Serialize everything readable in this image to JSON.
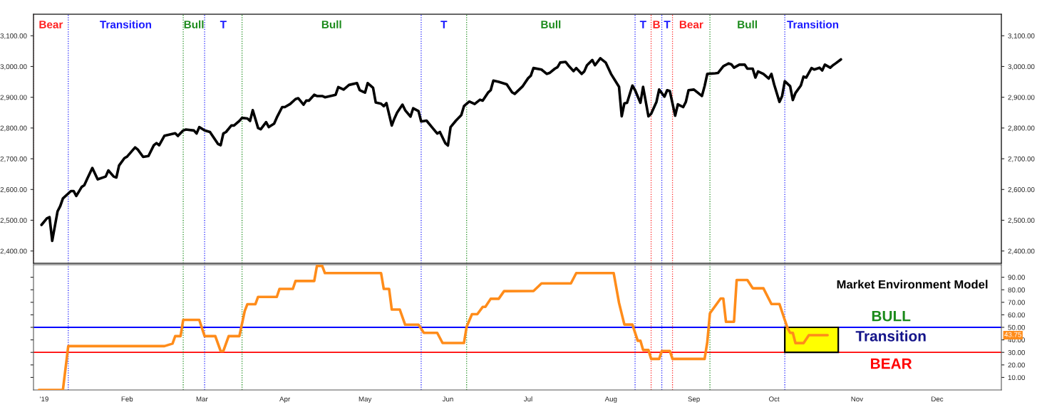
{
  "chart_data": [
    {
      "type": "line",
      "tick_labels": "y",
      "xlim": [
        "2018-12-28",
        "2019-12-25"
      ],
      "ylim": [
        2360,
        3170
      ],
      "yticks": [
        {
          "value": 2400,
          "label": "2,400.00"
        },
        {
          "value": 2500,
          "label": "2,500.00"
        },
        {
          "value": 2600,
          "label": "2,600.00"
        },
        {
          "value": 2700,
          "label": "2,700.00"
        },
        {
          "value": 2800,
          "label": "2,800.00"
        },
        {
          "value": 2900,
          "label": "2,900.00"
        },
        {
          "value": 3000,
          "label": "3,000.00"
        },
        {
          "value": 3100,
          "label": "3,100.00"
        }
      ],
      "y2lim": [
        2360,
        3170
      ],
      "y2ticks": [
        {
          "value": 2400,
          "label": "2,400.00"
        },
        {
          "value": 2500,
          "label": "2,500.00"
        },
        {
          "value": 2600,
          "label": "2,600.00"
        },
        {
          "value": 2700,
          "label": "2,700.00"
        },
        {
          "value": 2800,
          "label": "2,800.00"
        },
        {
          "value": 2900,
          "label": "2,900.00"
        },
        {
          "value": 3000,
          "label": "3,000.00"
        },
        {
          "value": 3100,
          "label": "3,100.00"
        }
      ],
      "ref_lines": [
        {
          "axis": "x",
          "value": "2018-12-28",
          "label": "Bear",
          "color": "#ff2020",
          "line_style": "dotted"
        },
        {
          "axis": "x",
          "value": "2019-01-10",
          "label": "Transition",
          "color": "#1a1aff",
          "line_style": "dotted"
        },
        {
          "axis": "x",
          "value": "2019-02-22",
          "label": "Bull",
          "color": "#1a8a1a",
          "line_style": "dotted"
        },
        {
          "axis": "x",
          "value": "2019-03-02",
          "label": "T",
          "color": "#1a1aff",
          "line_style": "dotted"
        },
        {
          "axis": "x",
          "value": "2019-03-16",
          "label": "Bull",
          "color": "#1a8a1a",
          "line_style": "dotted"
        },
        {
          "axis": "x",
          "value": "2019-05-22",
          "label": "T",
          "color": "#1a1aff",
          "line_style": "dotted"
        },
        {
          "axis": "x",
          "value": "2019-06-08",
          "label": "Bull",
          "color": "#1a8a1a",
          "line_style": "dotted"
        },
        {
          "axis": "x",
          "value": "2019-08-10",
          "label": "T",
          "color": "#1a1aff",
          "line_style": "dotted"
        },
        {
          "axis": "x",
          "value": "2019-08-16",
          "label": "B",
          "color": "#ff2020",
          "line_style": "dotted"
        },
        {
          "axis": "x",
          "value": "2019-08-20",
          "label": "T",
          "color": "#1a1aff",
          "line_style": "dotted"
        },
        {
          "axis": "x",
          "value": "2019-08-24",
          "label": "Bear",
          "color": "#ff2020",
          "line_style": "dotted"
        },
        {
          "axis": "x",
          "value": "2019-09-07",
          "label": "Bull",
          "color": "#1a8a1a",
          "line_style": "dotted"
        },
        {
          "axis": "x",
          "value": "2019-10-05",
          "label": "Transition",
          "color": "#1a1aff",
          "line_style": "dotted"
        }
      ],
      "series": [
        {
          "color": "#000000",
          "x": [
            "2018-12-31",
            "2019-01-02",
            "2019-01-03",
            "2019-01-04",
            "2019-01-06",
            "2019-01-07",
            "2019-01-08",
            "2019-01-11",
            "2019-01-12",
            "2019-01-13",
            "2019-01-15",
            "2019-01-16",
            "2019-01-17",
            "2019-01-19",
            "2019-01-21",
            "2019-01-24",
            "2019-01-25",
            "2019-01-27",
            "2019-01-28",
            "2019-01-29",
            "2019-01-31",
            "2019-02-01",
            "2019-02-04",
            "2019-02-05",
            "2019-02-07",
            "2019-02-09",
            "2019-02-11",
            "2019-02-12",
            "2019-02-13",
            "2019-02-15",
            "2019-02-19",
            "2019-02-20",
            "2019-02-22",
            "2019-02-23",
            "2019-02-26",
            "2019-02-27",
            "2019-02-28",
            "2019-03-02",
            "2019-03-04",
            "2019-03-07",
            "2019-03-08",
            "2019-03-09",
            "2019-03-10",
            "2019-03-12",
            "2019-03-13",
            "2019-03-15",
            "2019-03-16",
            "2019-03-18",
            "2019-03-19",
            "2019-03-20",
            "2019-03-22",
            "2019-03-23",
            "2019-03-25",
            "2019-03-26",
            "2019-03-28",
            "2019-03-29",
            "2019-03-31",
            "2019-04-01",
            "2019-04-03",
            "2019-04-05",
            "2019-04-06",
            "2019-04-08",
            "2019-04-09",
            "2019-04-10",
            "2019-04-12",
            "2019-04-13",
            "2019-04-15",
            "2019-04-16",
            "2019-04-18",
            "2019-04-20",
            "2019-04-21",
            "2019-04-23",
            "2019-04-25",
            "2019-04-28",
            "2019-04-29",
            "2019-05-01",
            "2019-05-02",
            "2019-05-04",
            "2019-05-05",
            "2019-05-07",
            "2019-05-08",
            "2019-05-09",
            "2019-05-11",
            "2019-05-12",
            "2019-05-13",
            "2019-05-15",
            "2019-05-16",
            "2019-05-18",
            "2019-05-19",
            "2019-05-21",
            "2019-05-22",
            "2019-05-24",
            "2019-05-26",
            "2019-05-28",
            "2019-05-29",
            "2019-05-31",
            "2019-06-01",
            "2019-06-02",
            "2019-06-04",
            "2019-06-06",
            "2019-06-07",
            "2019-06-09",
            "2019-06-11",
            "2019-06-13",
            "2019-06-14",
            "2019-06-16",
            "2019-06-17",
            "2019-06-18",
            "2019-06-20",
            "2019-06-23",
            "2019-06-25",
            "2019-06-26",
            "2019-06-29",
            "2019-07-01",
            "2019-07-02",
            "2019-07-03",
            "2019-07-06",
            "2019-07-08",
            "2019-07-09",
            "2019-07-11",
            "2019-07-12",
            "2019-07-13",
            "2019-07-15",
            "2019-07-16",
            "2019-07-18",
            "2019-07-19",
            "2019-07-21",
            "2019-07-22",
            "2019-07-23",
            "2019-07-25",
            "2019-07-26",
            "2019-07-28",
            "2019-07-30",
            "2019-08-01",
            "2019-08-04",
            "2019-08-05",
            "2019-08-06",
            "2019-08-07",
            "2019-08-09",
            "2019-08-10",
            "2019-08-12",
            "2019-08-13",
            "2019-08-15",
            "2019-08-16",
            "2019-08-18",
            "2019-08-19",
            "2019-08-21",
            "2019-08-22",
            "2019-08-23",
            "2019-08-25",
            "2019-08-26",
            "2019-08-28",
            "2019-08-29",
            "2019-08-30",
            "2019-09-01",
            "2019-09-04",
            "2019-09-05",
            "2019-09-06",
            "2019-09-09",
            "2019-09-10",
            "2019-09-12",
            "2019-09-14",
            "2019-09-15",
            "2019-09-16",
            "2019-09-18",
            "2019-09-20",
            "2019-09-21",
            "2019-09-23",
            "2019-09-24",
            "2019-09-25",
            "2019-09-27",
            "2019-09-29",
            "2019-09-30",
            "2019-10-01",
            "2019-10-03",
            "2019-10-04",
            "2019-10-05",
            "2019-10-07",
            "2019-10-08",
            "2019-10-09",
            "2019-10-11",
            "2019-10-12",
            "2019-10-13",
            "2019-10-15",
            "2019-10-16",
            "2019-10-18",
            "2019-10-19",
            "2019-10-20",
            "2019-10-22",
            "2019-10-23",
            "2019-10-24",
            "2019-10-26"
          ],
          "values": [
            2485,
            2506,
            2510,
            2433,
            2529,
            2546,
            2571,
            2595,
            2595,
            2579,
            2608,
            2614,
            2633,
            2670,
            2633,
            2642,
            2662,
            2642,
            2639,
            2678,
            2702,
            2707,
            2737,
            2730,
            2706,
            2709,
            2744,
            2751,
            2744,
            2775,
            2783,
            2774,
            2792,
            2795,
            2792,
            2782,
            2803,
            2792,
            2787,
            2748,
            2744,
            2782,
            2787,
            2808,
            2808,
            2823,
            2833,
            2831,
            2823,
            2858,
            2800,
            2796,
            2819,
            2803,
            2814,
            2834,
            2868,
            2868,
            2878,
            2894,
            2897,
            2876,
            2889,
            2889,
            2908,
            2904,
            2904,
            2900,
            2904,
            2908,
            2933,
            2925,
            2940,
            2946,
            2923,
            2915,
            2946,
            2931,
            2883,
            2879,
            2871,
            2881,
            2808,
            2831,
            2850,
            2876,
            2858,
            2837,
            2864,
            2855,
            2821,
            2824,
            2803,
            2782,
            2787,
            2751,
            2743,
            2803,
            2824,
            2842,
            2871,
            2886,
            2878,
            2892,
            2889,
            2915,
            2923,
            2954,
            2950,
            2942,
            2916,
            2911,
            2936,
            2962,
            2970,
            2995,
            2990,
            2976,
            2979,
            2993,
            2998,
            3013,
            3015,
            3004,
            2985,
            2995,
            2976,
            2984,
            3004,
            3021,
            3004,
            3027,
            3013,
            2976,
            2934,
            2838,
            2880,
            2882,
            2938,
            2923,
            2882,
            2934,
            2838,
            2846,
            2885,
            2925,
            2902,
            2923,
            2920,
            2840,
            2877,
            2868,
            2885,
            2923,
            2925,
            2904,
            2936,
            2976,
            2978,
            2979,
            3001,
            3010,
            3007,
            2996,
            3006,
            3006,
            2993,
            2993,
            2964,
            2984,
            2976,
            2961,
            2976,
            2942,
            2885,
            2904,
            2952,
            2936,
            2891,
            2914,
            2938,
            2967,
            2964,
            2995,
            2990,
            2996,
            2987,
            3006,
            2996,
            3004,
            3010,
            3023
          ]
        }
      ]
    },
    {
      "type": "line",
      "title": "Market Environment Model",
      "xlim": [
        "2018-12-28",
        "2019-12-25"
      ],
      "xticks": [
        {
          "value": "2019-01-01",
          "label": "'19"
        },
        {
          "value": "2019-02-01",
          "label": "Feb"
        },
        {
          "value": "2019-03-01",
          "label": "Mar"
        },
        {
          "value": "2019-04-01",
          "label": "Apr"
        },
        {
          "value": "2019-05-01",
          "label": "May"
        },
        {
          "value": "2019-06-01",
          "label": "Jun"
        },
        {
          "value": "2019-07-01",
          "label": "Jul"
        },
        {
          "value": "2019-08-01",
          "label": "Aug"
        },
        {
          "value": "2019-09-01",
          "label": "Sep"
        },
        {
          "value": "2019-10-01",
          "label": "Oct"
        },
        {
          "value": "2019-11-01",
          "label": "Nov"
        },
        {
          "value": "2019-12-01",
          "label": "Dec"
        }
      ],
      "ylim": [
        0,
        100
      ],
      "yticks": [
        {
          "value": 10,
          "label": "10.00"
        },
        {
          "value": 20,
          "label": "20.00"
        },
        {
          "value": 30,
          "label": "30.00"
        },
        {
          "value": 40,
          "label": "40.00"
        },
        {
          "value": 50,
          "label": "50.00"
        },
        {
          "value": 60,
          "label": "60.00"
        },
        {
          "value": 70,
          "label": "70.00"
        },
        {
          "value": 80,
          "label": "80.00"
        },
        {
          "value": 90,
          "label": "90.00"
        }
      ],
      "ref_lines": [
        {
          "axis": "y",
          "value": 50,
          "color": "#0000ff",
          "line_style": "solid"
        },
        {
          "axis": "y",
          "value": 30,
          "color": "#ff0000",
          "line_style": "solid"
        },
        {
          "axis": "x",
          "value": "2019-01-10",
          "color": "#1a1aff",
          "line_style": "dotted"
        },
        {
          "axis": "x",
          "value": "2019-02-22",
          "color": "#1a8a1a",
          "line_style": "dotted"
        },
        {
          "axis": "x",
          "value": "2019-03-02",
          "color": "#1a1aff",
          "line_style": "dotted"
        },
        {
          "axis": "x",
          "value": "2019-03-16",
          "color": "#1a8a1a",
          "line_style": "dotted"
        },
        {
          "axis": "x",
          "value": "2019-05-22",
          "color": "#1a1aff",
          "line_style": "dotted"
        },
        {
          "axis": "x",
          "value": "2019-06-08",
          "color": "#1a8a1a",
          "line_style": "dotted"
        },
        {
          "axis": "x",
          "value": "2019-08-10",
          "color": "#1a1aff",
          "line_style": "dotted"
        },
        {
          "axis": "x",
          "value": "2019-08-16",
          "color": "#ff2020",
          "line_style": "dotted"
        },
        {
          "axis": "x",
          "value": "2019-08-20",
          "color": "#1a1aff",
          "line_style": "dotted"
        },
        {
          "axis": "x",
          "value": "2019-08-24",
          "color": "#ff2020",
          "line_style": "dotted"
        },
        {
          "axis": "x",
          "value": "2019-09-07",
          "color": "#1a8a1a",
          "line_style": "dotted"
        },
        {
          "axis": "x",
          "value": "2019-10-05",
          "color": "#1a1aff",
          "line_style": "dotted"
        }
      ],
      "bands": [
        {
          "axis": "x",
          "from": "2019-10-05",
          "to": "2019-10-25",
          "color": "#ffff00"
        }
      ],
      "annotations": [
        "BULL",
        "Transition",
        "BEAR",
        {
          "text": "43.75",
          "y": 43.75
        }
      ],
      "series": [
        {
          "color": "#ff8c1a",
          "x": [
            "2018-12-30",
            "2019-01-08",
            "2019-01-10",
            "2019-02-15",
            "2019-02-18",
            "2019-02-19",
            "2019-02-21",
            "2019-02-22",
            "2019-02-28",
            "2019-03-02",
            "2019-03-06",
            "2019-03-08",
            "2019-03-09",
            "2019-03-11",
            "2019-03-15",
            "2019-03-17",
            "2019-03-18",
            "2019-03-21",
            "2019-03-22",
            "2019-03-29",
            "2019-03-30",
            "2019-04-04",
            "2019-04-05",
            "2019-04-12",
            "2019-04-13",
            "2019-04-15",
            "2019-04-16",
            "2019-05-07",
            "2019-05-08",
            "2019-05-10",
            "2019-05-11",
            "2019-05-14",
            "2019-05-16",
            "2019-05-21",
            "2019-05-23",
            "2019-05-28",
            "2019-05-30",
            "2019-06-07",
            "2019-06-08",
            "2019-06-10",
            "2019-06-12",
            "2019-06-14",
            "2019-06-15",
            "2019-06-17",
            "2019-06-20",
            "2019-06-22",
            "2019-07-03",
            "2019-07-06",
            "2019-07-17",
            "2019-07-19",
            "2019-08-02",
            "2019-08-04",
            "2019-08-06",
            "2019-08-09",
            "2019-08-11",
            "2019-08-12",
            "2019-08-13",
            "2019-08-15",
            "2019-08-16",
            "2019-08-19",
            "2019-08-20",
            "2019-08-23",
            "2019-08-24",
            "2019-09-05",
            "2019-09-06",
            "2019-09-07",
            "2019-09-11",
            "2019-09-12",
            "2019-09-13",
            "2019-09-16",
            "2019-09-17",
            "2019-09-21",
            "2019-09-23",
            "2019-09-27",
            "2019-09-30",
            "2019-10-03",
            "2019-10-06",
            "2019-10-07",
            "2019-10-08",
            "2019-10-09",
            "2019-10-12",
            "2019-10-14",
            "2019-10-21"
          ],
          "values": [
            0,
            0,
            35,
            35,
            37,
            43,
            43,
            56,
            56,
            43,
            43,
            31,
            31,
            43,
            43,
            63,
            68.5,
            68.5,
            74.3,
            74.3,
            80.7,
            80.7,
            87,
            87,
            99,
            99,
            93.3,
            93.3,
            80.7,
            80.7,
            64.2,
            64.2,
            52.1,
            52.1,
            45.6,
            45.6,
            37.5,
            37.5,
            50.4,
            60.5,
            60.5,
            66.3,
            66.3,
            72.8,
            72.8,
            78.9,
            79,
            85.1,
            85.1,
            93.3,
            93.3,
            69.5,
            52.2,
            52.2,
            39.3,
            39.3,
            31.9,
            31.9,
            24.8,
            24.8,
            31.1,
            31.1,
            24.8,
            24.8,
            38,
            61.2,
            73,
            73,
            54.4,
            54.4,
            87.8,
            87.8,
            81.2,
            81.2,
            68.6,
            68.6,
            49.5,
            45.6,
            45.6,
            37.4,
            37.4,
            43.75,
            43.75
          ]
        }
      ]
    }
  ]
}
